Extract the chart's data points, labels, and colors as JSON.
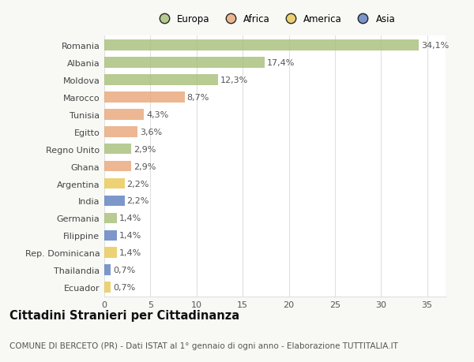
{
  "countries": [
    "Romania",
    "Albania",
    "Moldova",
    "Marocco",
    "Tunisia",
    "Egitto",
    "Regno Unito",
    "Ghana",
    "Argentina",
    "India",
    "Germania",
    "Filippine",
    "Rep. Dominicana",
    "Thailandia",
    "Ecuador"
  ],
  "values": [
    34.1,
    17.4,
    12.3,
    8.7,
    4.3,
    3.6,
    2.9,
    2.9,
    2.2,
    2.2,
    1.4,
    1.4,
    1.4,
    0.7,
    0.7
  ],
  "labels": [
    "34,1%",
    "17,4%",
    "12,3%",
    "8,7%",
    "4,3%",
    "3,6%",
    "2,9%",
    "2,9%",
    "2,2%",
    "2,2%",
    "1,4%",
    "1,4%",
    "1,4%",
    "0,7%",
    "0,7%"
  ],
  "colors": [
    "#a8c07a",
    "#a8c07a",
    "#a8c07a",
    "#e8a87a",
    "#e8a87a",
    "#e8a87a",
    "#a8c07a",
    "#e8a87a",
    "#e8c855",
    "#6080c0",
    "#a8c07a",
    "#6080c0",
    "#e8c855",
    "#6080c0",
    "#e8c855"
  ],
  "legend_labels": [
    "Europa",
    "Africa",
    "America",
    "Asia"
  ],
  "legend_colors": [
    "#a8c07a",
    "#e8a87a",
    "#e8c855",
    "#6080c0"
  ],
  "title": "Cittadini Stranieri per Cittadinanza",
  "subtitle": "COMUNE DI BERCETO (PR) - Dati ISTAT al 1° gennaio di ogni anno - Elaborazione TUTTITALIA.IT",
  "xlim": [
    0,
    37
  ],
  "background_color": "#f8f8f5",
  "plot_bg_color": "#ffffff",
  "grid_color": "#e0e0e0",
  "label_fontsize": 8,
  "tick_fontsize": 8,
  "title_fontsize": 10.5,
  "subtitle_fontsize": 7.5
}
